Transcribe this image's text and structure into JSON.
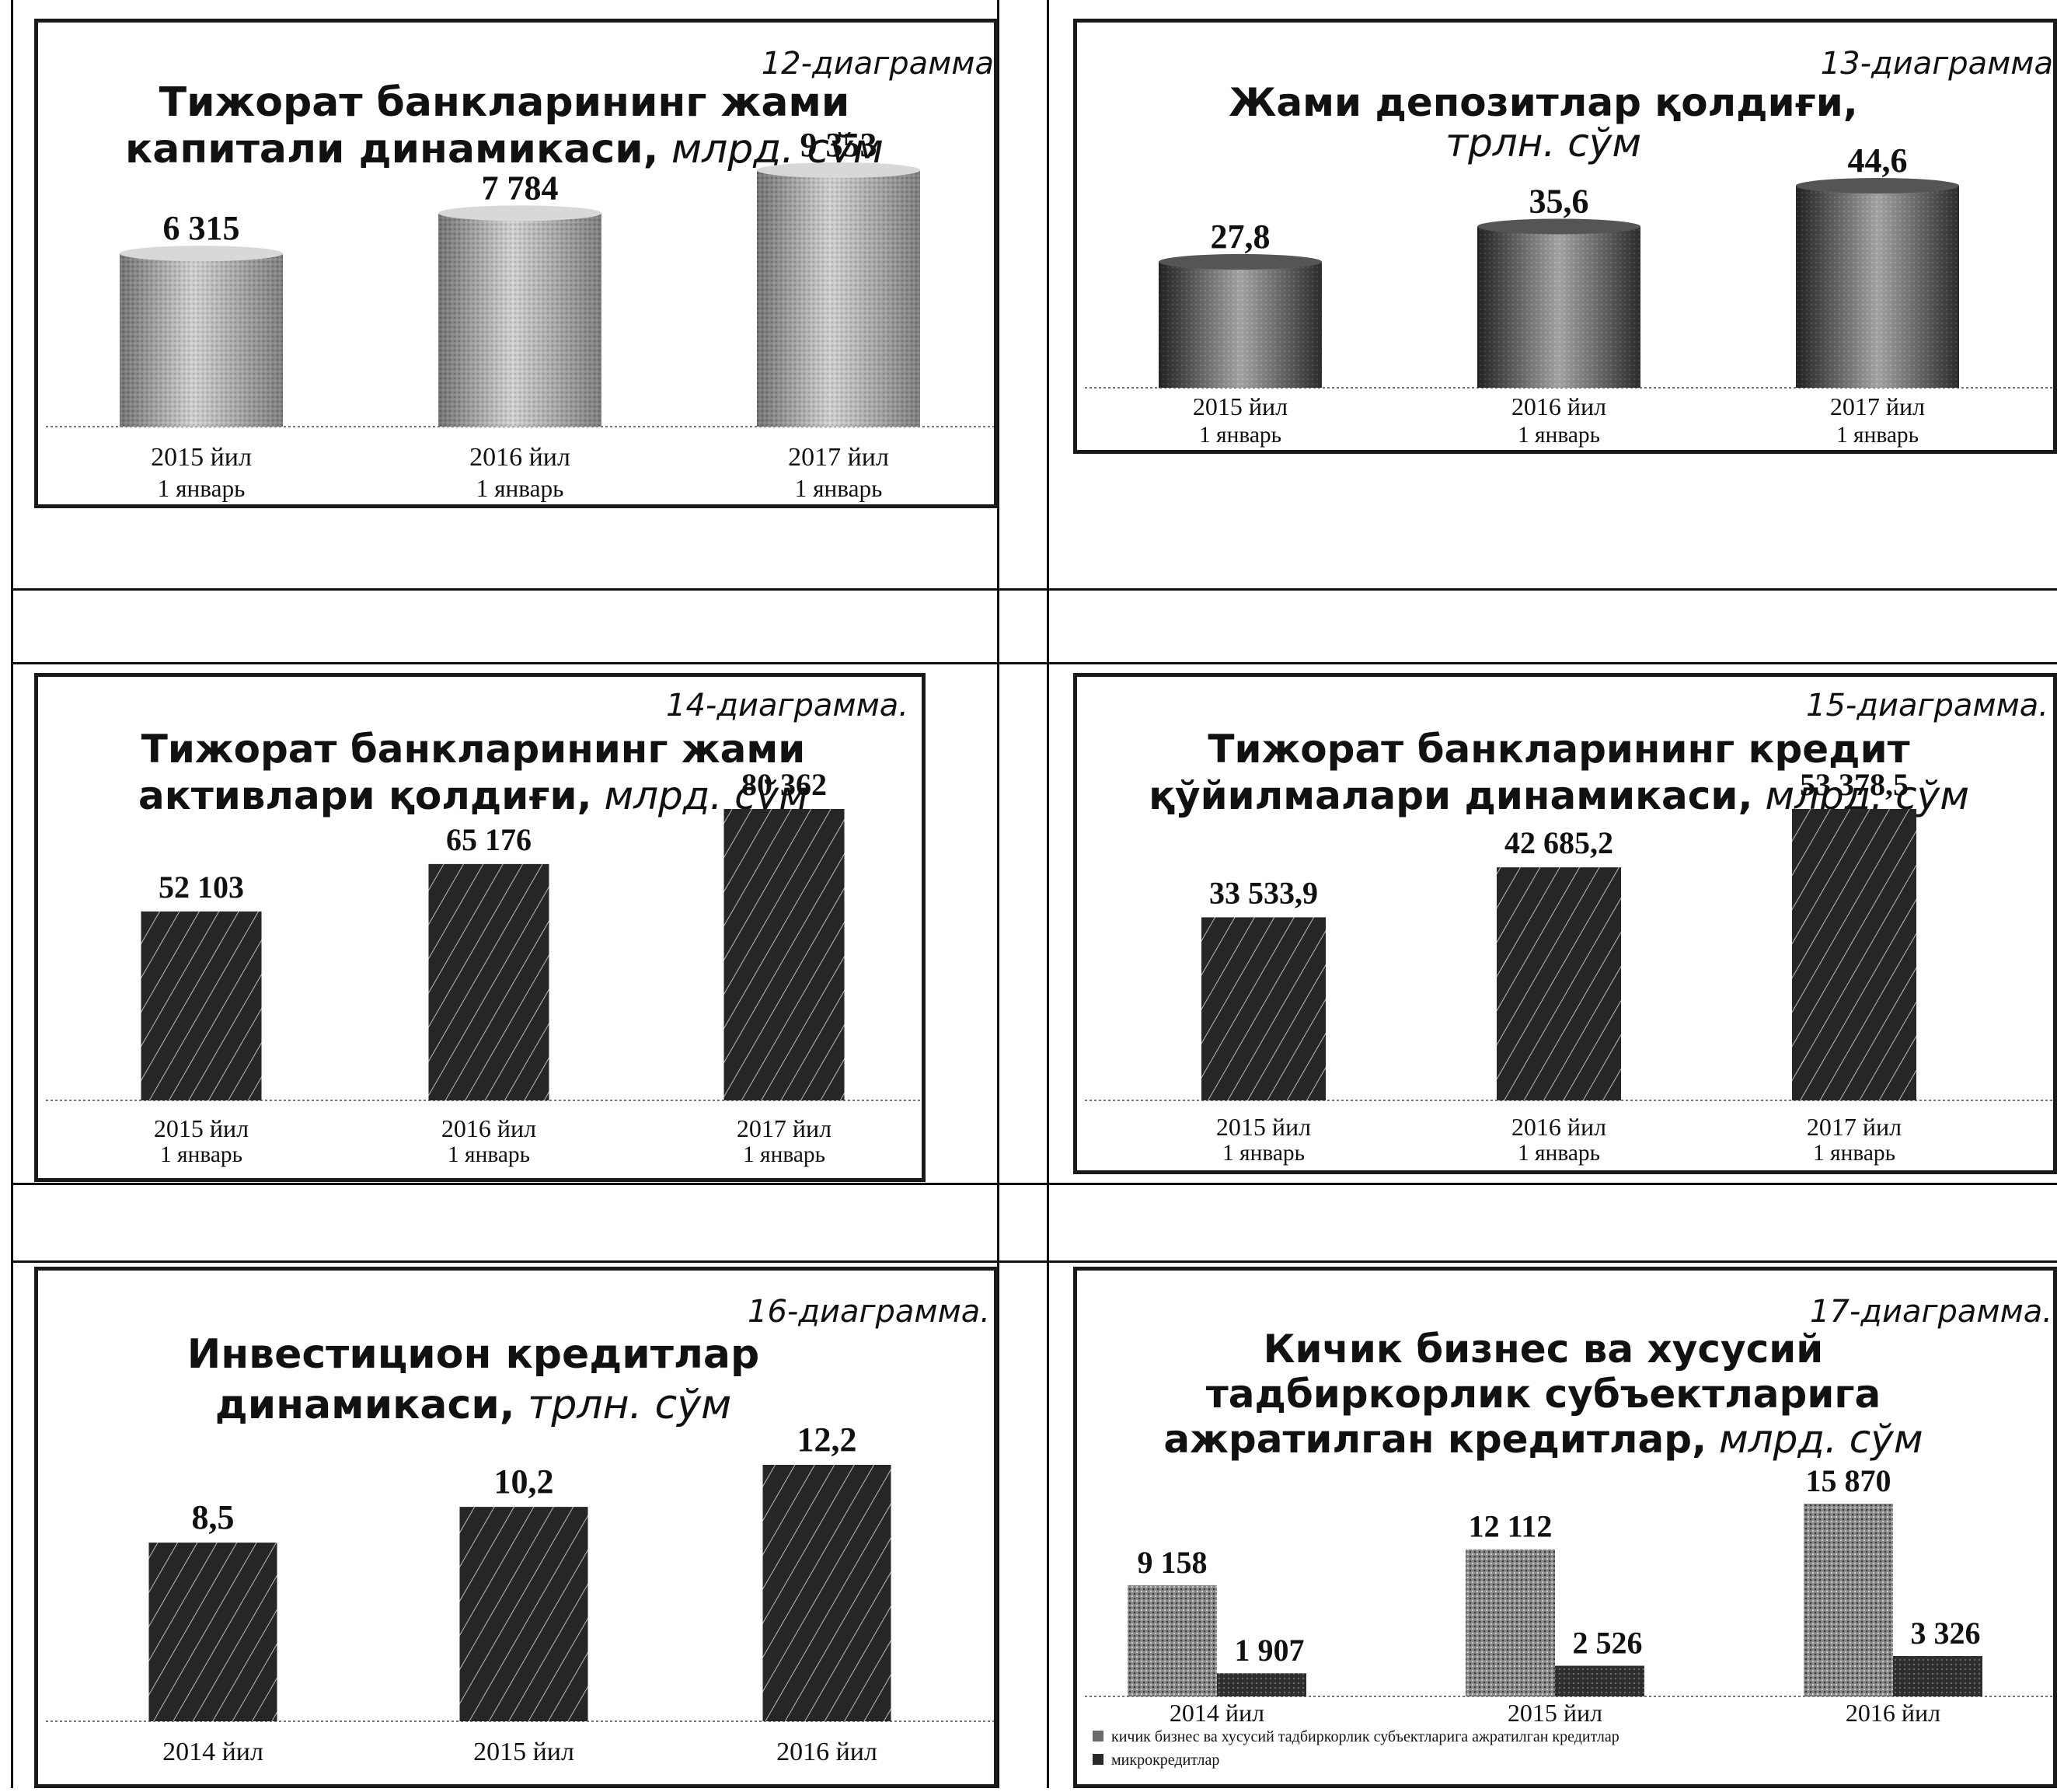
{
  "chart_data": [
    {
      "type": "bar",
      "diagram_label": "12-диаграмма",
      "title": "Тижорат банкларининг жами капитали динамикаси,",
      "unit": "млрд. сўм",
      "categories": [
        [
          "2015 йил",
          "1 январь"
        ],
        [
          "2016 йил",
          "1 январь"
        ],
        [
          "2017 йил",
          "1 январь"
        ]
      ],
      "values": [
        6315,
        7784,
        9353
      ],
      "value_labels": [
        "6 315",
        "7 784",
        "9 353"
      ],
      "bar_style": "cylinder-light"
    },
    {
      "type": "bar",
      "diagram_label": "13-диаграмма",
      "title": "Жами депозитлар қолдиғи,",
      "unit": "трлн. сўм",
      "categories": [
        [
          "2015 йил",
          "1 январь"
        ],
        [
          "2016 йил",
          "1 январь"
        ],
        [
          "2017 йил",
          "1 январь"
        ]
      ],
      "values": [
        27.8,
        35.6,
        44.6
      ],
      "value_labels": [
        "27,8",
        "35,6",
        "44,6"
      ],
      "bar_style": "cylinder-dark"
    },
    {
      "type": "bar",
      "diagram_label": "14-диаграмма.",
      "title": "Тижорат банкларининг жами активлари қолдиғи,",
      "unit": "млрд. сўм",
      "categories": [
        [
          "2015 йил",
          "1 январь"
        ],
        [
          "2016 йил",
          "1 январь"
        ],
        [
          "2017 йил",
          "1 январь"
        ]
      ],
      "values": [
        52103,
        65176,
        80362
      ],
      "value_labels": [
        "52 103",
        "65 176",
        "80 362"
      ],
      "bar_style": "hatched"
    },
    {
      "type": "bar",
      "diagram_label": "15-диаграмма.",
      "title": "Тижорат банкларининг кредит қўйилмалари динамикаси,",
      "unit": "млрд. сўм",
      "categories": [
        [
          "2015 йил",
          "1 январь"
        ],
        [
          "2016 йил",
          "1 январь"
        ],
        [
          "2017 йил",
          "1 январь"
        ]
      ],
      "values": [
        33533.9,
        42685.2,
        53378.5
      ],
      "value_labels": [
        "33 533,9",
        "42 685,2",
        "53 378,5"
      ],
      "bar_style": "hatched"
    },
    {
      "type": "bar",
      "diagram_label": "16-диаграмма.",
      "title": "Инвестицион кредитлар динамикаси,",
      "unit": "трлн. сўм",
      "categories": [
        [
          "2014 йил"
        ],
        [
          "2015 йил"
        ],
        [
          "2016 йил"
        ]
      ],
      "values": [
        8.5,
        10.2,
        12.2
      ],
      "value_labels": [
        "8,5",
        "10,2",
        "12,2"
      ],
      "bar_style": "hatched"
    },
    {
      "type": "bar",
      "diagram_label": "17-диаграмма.",
      "title": "Кичик бизнес ва хусусий тадбиркорлик субъектларига ажратилган кредитлар,",
      "unit": "млрд. сўм",
      "categories": [
        [
          "2014 йил"
        ],
        [
          "2015 йил"
        ],
        [
          "2016 йил"
        ]
      ],
      "series": [
        {
          "name": "кичик бизнес ва хусусий тадбиркорлик субъектларига ажратилган кредитлар",
          "values": [
            9158,
            12112,
            15870
          ],
          "value_labels": [
            "9 158",
            "12 112",
            "15 870"
          ]
        },
        {
          "name": "микрокредитлар",
          "values": [
            1907,
            2526,
            3326
          ],
          "value_labels": [
            "1 907",
            "2 526",
            "3 326"
          ]
        }
      ],
      "legend": "bottom-left"
    }
  ]
}
